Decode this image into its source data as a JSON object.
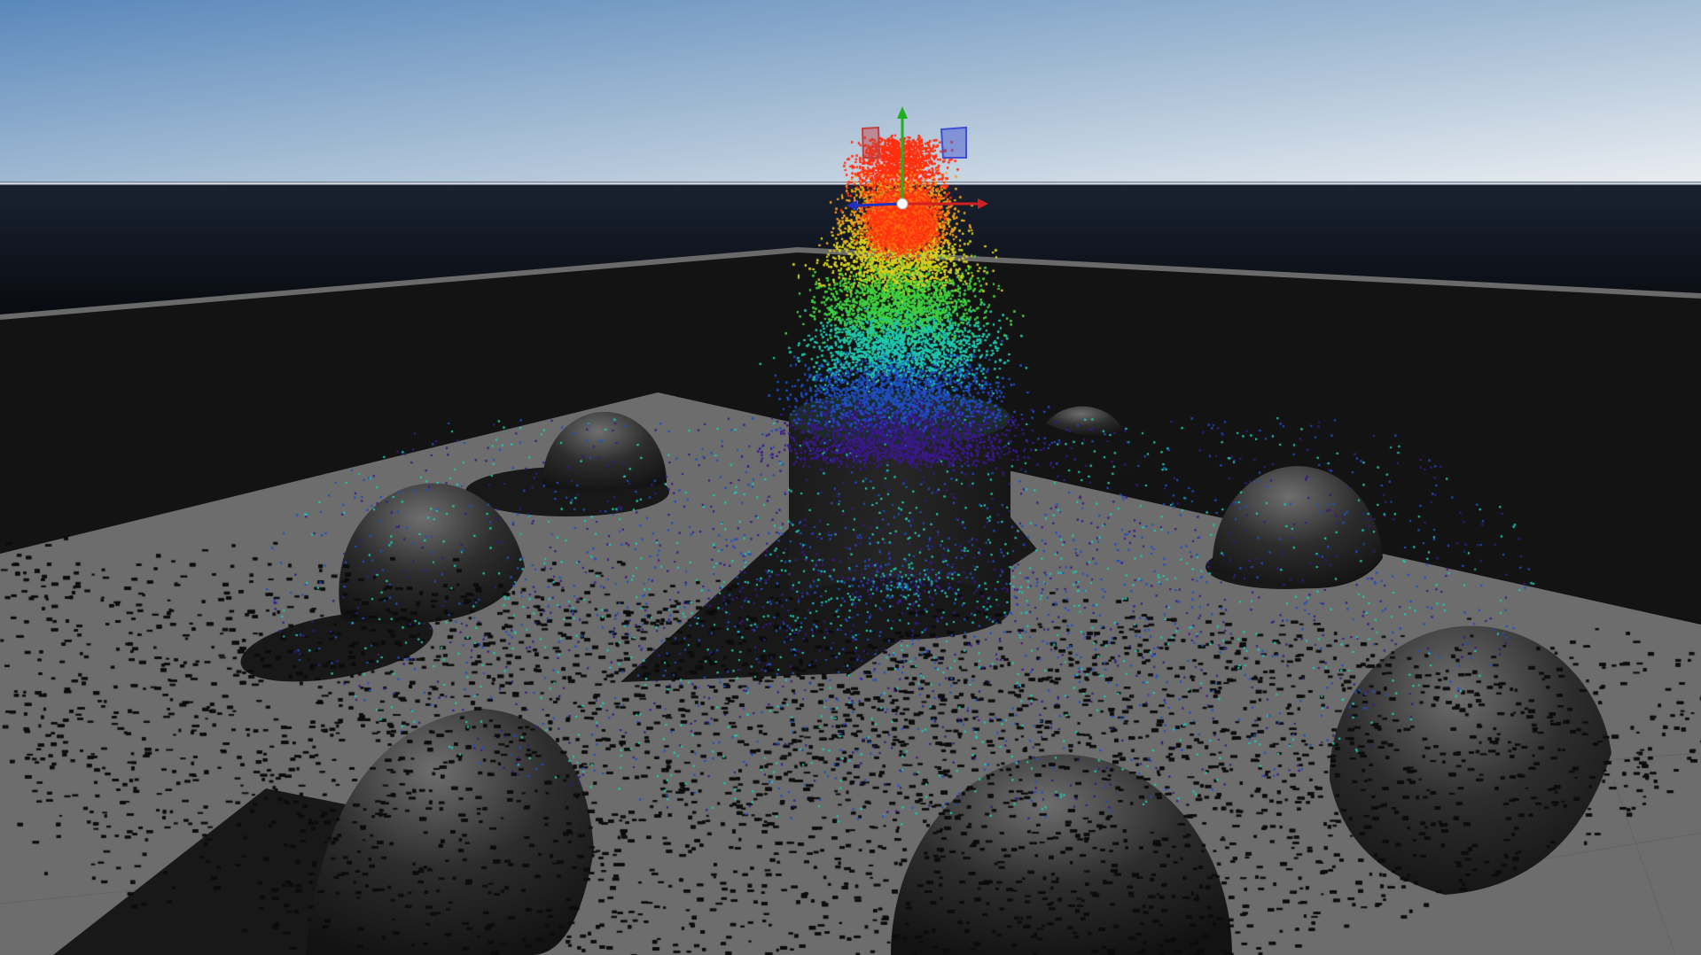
{
  "viewport": {
    "sky_top_color": "#5d8cbe",
    "sky_horizon_color": "#e6ebf0",
    "ground_color": "#6b6b6b",
    "wall_color": "#131313",
    "far_ground_color": "#0e1420"
  },
  "particle_gradient": [
    "#3a1a8a",
    "#2050c0",
    "#20c8b0",
    "#40d040",
    "#d8d020",
    "#f0a020",
    "#ff3010"
  ],
  "gizmo": {
    "axis_x_color": "#d02020",
    "axis_y_color": "#20b020",
    "axis_z_color": "#2030c0",
    "plane_xy_color": "#c04040",
    "plane_yz_color": "#4050d0",
    "plane_xy_label": "",
    "plane_yz_label": ""
  },
  "scene_objects": [
    {
      "name": "cylinder-emitter",
      "icon": "cylinder"
    },
    {
      "name": "hemisphere-1",
      "icon": "hemisphere"
    },
    {
      "name": "hemisphere-2",
      "icon": "hemisphere"
    },
    {
      "name": "hemisphere-3",
      "icon": "hemisphere"
    },
    {
      "name": "hemisphere-4",
      "icon": "hemisphere"
    },
    {
      "name": "hemisphere-5",
      "icon": "hemisphere"
    },
    {
      "name": "hemisphere-6",
      "icon": "hemisphere"
    },
    {
      "name": "hemisphere-7",
      "icon": "hemisphere"
    }
  ]
}
